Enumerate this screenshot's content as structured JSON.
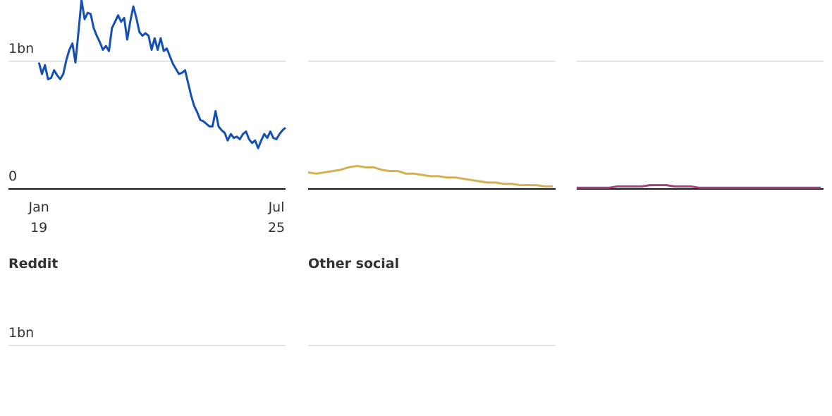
{
  "chart_data": [
    {
      "type": "line",
      "color": "#1450b4",
      "x": [
        0,
        1,
        2,
        3,
        4,
        5,
        6,
        7,
        8,
        9,
        10,
        11,
        12,
        13,
        14,
        15,
        16,
        17,
        18,
        19,
        20,
        21,
        22,
        23,
        24,
        25,
        26,
        27,
        28,
        29,
        30,
        31,
        32,
        33,
        34,
        35,
        36,
        37,
        38,
        39,
        40,
        41,
        42,
        43,
        44,
        45,
        46,
        47,
        48,
        49,
        50,
        51,
        52,
        53,
        54,
        55,
        56,
        57,
        58,
        59,
        60,
        61,
        62,
        63,
        64,
        65,
        66,
        67,
        68,
        69,
        70,
        71,
        72,
        73,
        74,
        75,
        76,
        77,
        78,
        79,
        80,
        81
      ],
      "values": [
        0.99,
        0.9,
        0.97,
        0.86,
        0.87,
        0.93,
        0.89,
        0.86,
        0.9,
        1.01,
        1.09,
        1.14,
        0.99,
        1.23,
        1.48,
        1.33,
        1.38,
        1.37,
        1.26,
        1.2,
        1.15,
        1.09,
        1.12,
        1.08,
        1.26,
        1.31,
        1.36,
        1.31,
        1.34,
        1.17,
        1.31,
        1.43,
        1.34,
        1.23,
        1.2,
        1.22,
        1.2,
        1.09,
        1.18,
        1.09,
        1.18,
        1.08,
        1.1,
        1.04,
        0.98,
        0.94,
        0.9,
        0.91,
        0.93,
        0.83,
        0.73,
        0.65,
        0.6,
        0.54,
        0.53,
        0.51,
        0.49,
        0.49,
        0.61,
        0.49,
        0.46,
        0.44,
        0.38,
        0.43,
        0.4,
        0.41,
        0.39,
        0.43,
        0.45,
        0.39,
        0.36,
        0.38,
        0.32,
        0.38,
        0.43,
        0.4,
        0.45,
        0.4,
        0.39,
        0.43,
        0.46,
        0.48
      ],
      "xlim": [
        -10,
        81
      ],
      "ylim": [
        0,
        1.48
      ],
      "xticks": [
        {
          "value": 0,
          "label": "Jan 19"
        },
        {
          "value": 78,
          "label": "Jul 25"
        }
      ],
      "yticks": [
        0,
        {
          "value": 1,
          "label": "1bn"
        }
      ]
    },
    {
      "type": "line",
      "color": "#d4b14f",
      "x": [
        -10,
        -7,
        -4,
        -1,
        2,
        5,
        8,
        11,
        14,
        17,
        20,
        23,
        26,
        29,
        32,
        35,
        38,
        41,
        44,
        47,
        50,
        53,
        56,
        59,
        62,
        65,
        68,
        71,
        74,
        77,
        80
      ],
      "values": [
        0.13,
        0.12,
        0.13,
        0.14,
        0.15,
        0.17,
        0.18,
        0.17,
        0.17,
        0.15,
        0.14,
        0.14,
        0.12,
        0.12,
        0.11,
        0.1,
        0.1,
        0.09,
        0.09,
        0.08,
        0.07,
        0.06,
        0.05,
        0.05,
        0.04,
        0.04,
        0.03,
        0.03,
        0.03,
        0.02,
        0.02
      ],
      "xlim": [
        -10,
        81
      ],
      "ylim": [
        0,
        1.48
      ],
      "yticks": [
        1
      ]
    },
    {
      "type": "line",
      "color": "#a3407f",
      "x": [
        -10,
        -7,
        -4,
        -1,
        2,
        5,
        8,
        11,
        14,
        17,
        20,
        23,
        26,
        29,
        32,
        35,
        38,
        41,
        44,
        47,
        50,
        53,
        56,
        59,
        62,
        65,
        68,
        71,
        74,
        77,
        80
      ],
      "values": [
        0.01,
        0.01,
        0.01,
        0.01,
        0.01,
        0.02,
        0.02,
        0.02,
        0.02,
        0.03,
        0.03,
        0.03,
        0.02,
        0.02,
        0.02,
        0.01,
        0.01,
        0.01,
        0.01,
        0.01,
        0.01,
        0.01,
        0.01,
        0.01,
        0.01,
        0.01,
        0.01,
        0.01,
        0.01,
        0.01,
        0.01
      ],
      "xlim": [
        -10,
        81
      ],
      "ylim": [
        0,
        1.48
      ],
      "yticks": [
        1
      ]
    },
    {
      "type": "line",
      "title": "Reddit",
      "ylim": [
        0,
        1.48
      ],
      "yticks": [
        {
          "value": 1,
          "label": "1bn"
        }
      ]
    },
    {
      "type": "line",
      "title": "Other social",
      "ylim": [
        0,
        1.48
      ],
      "yticks": [
        1
      ]
    }
  ]
}
